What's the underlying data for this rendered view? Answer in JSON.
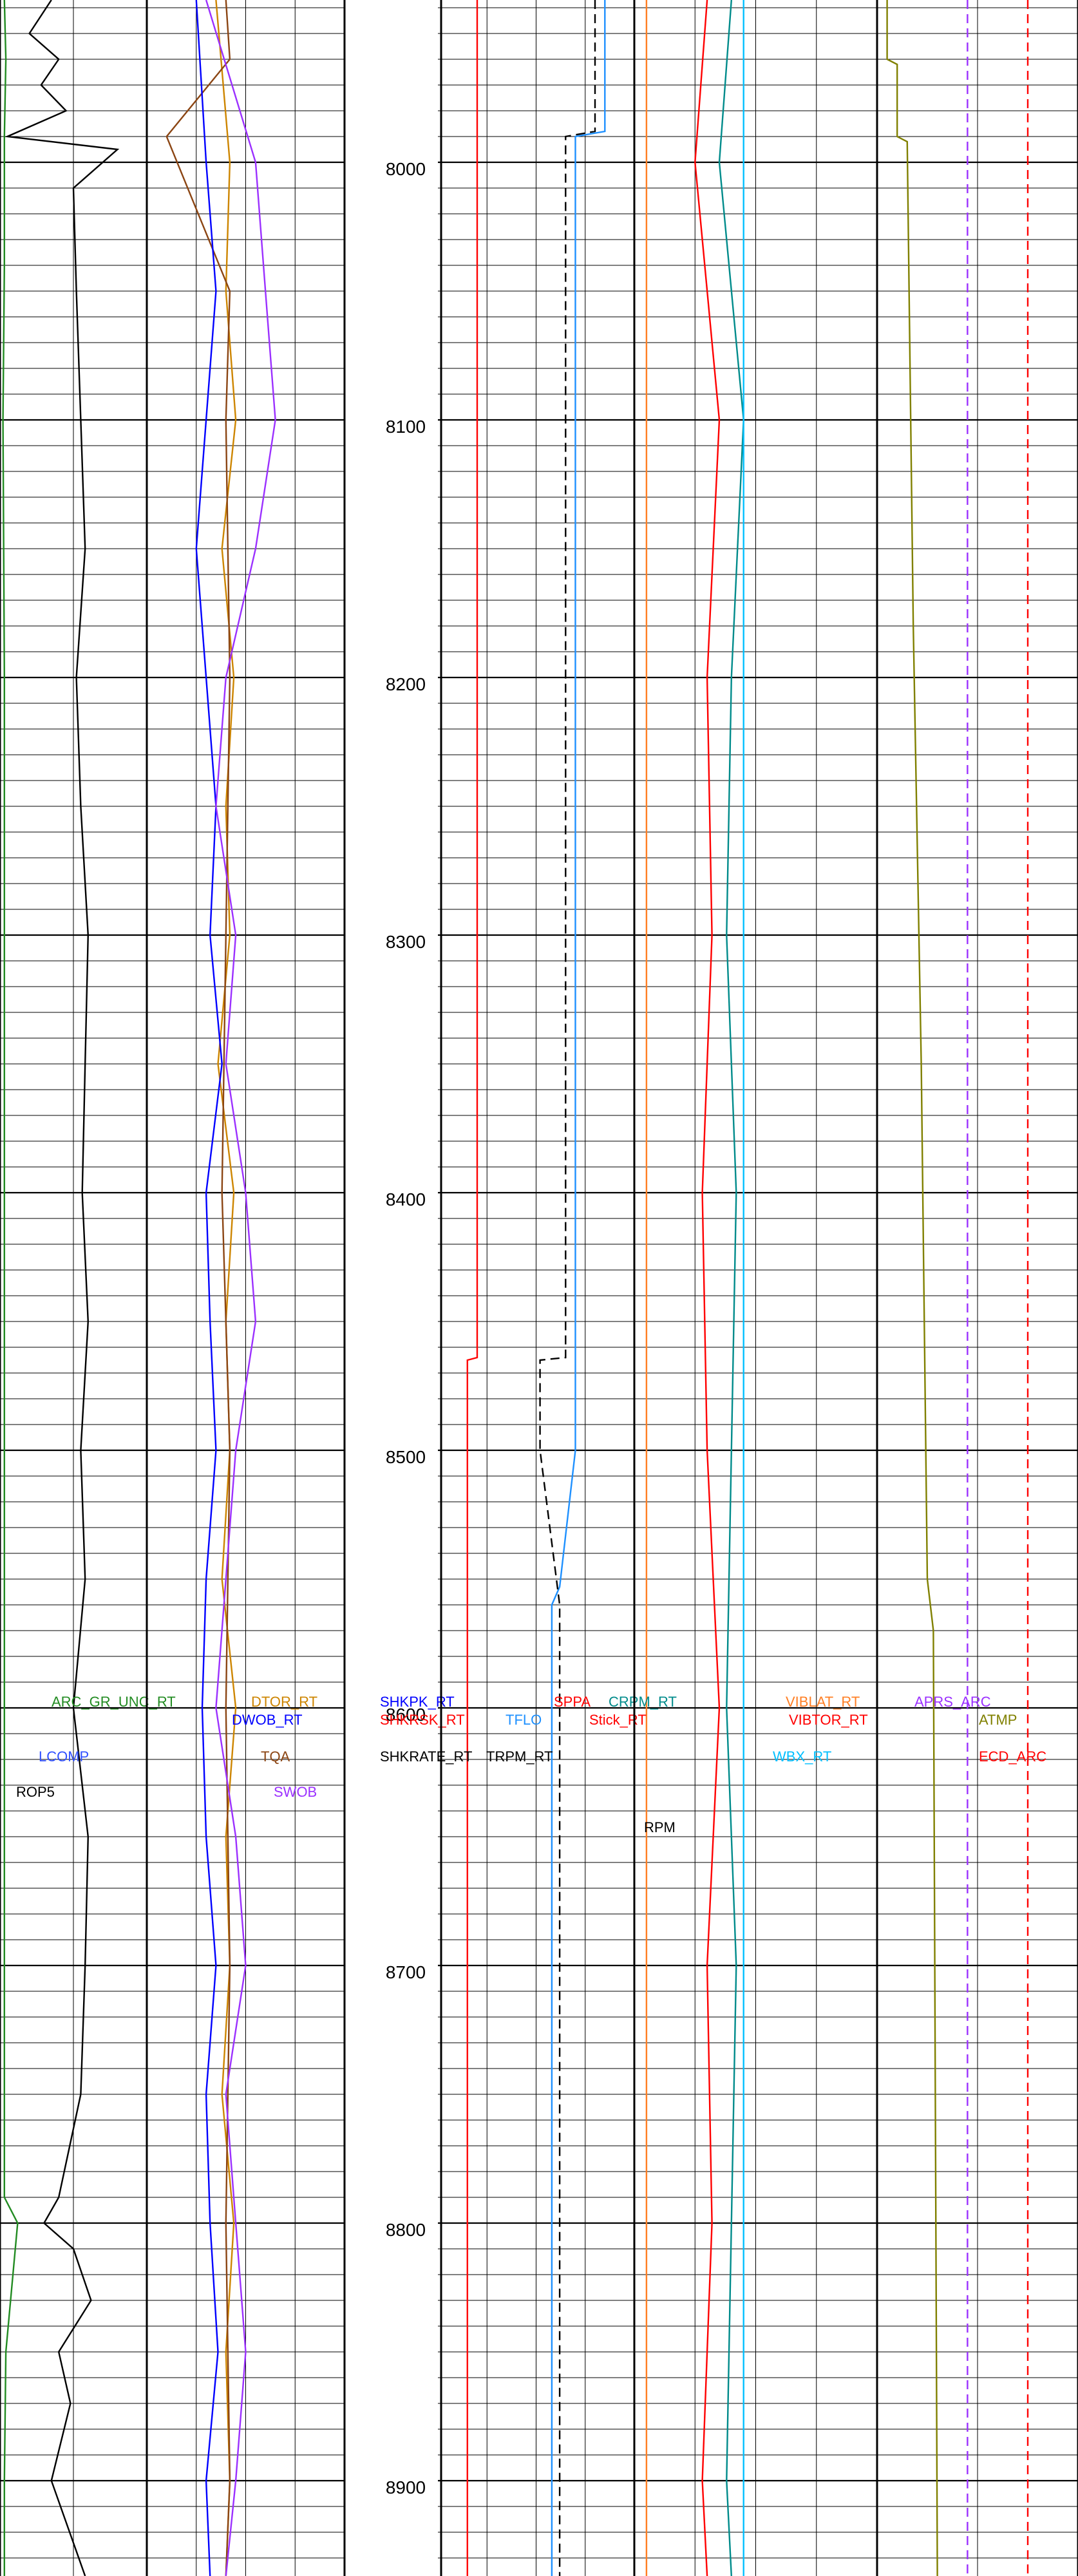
{
  "chart_data": {
    "type": "line",
    "title": "",
    "y_axis": {
      "label": "",
      "unit": "",
      "range": [
        7937,
        8937
      ],
      "inverted": true,
      "ticks": [
        8000,
        8100,
        8200,
        8300,
        8400,
        8500,
        8600,
        8700,
        8800,
        8900
      ],
      "tick_labels": [
        "8000",
        "8100",
        "8200",
        "8300",
        "8400",
        "8500",
        "8600",
        "8700",
        "8800",
        "8900"
      ],
      "minor_step": 10
    },
    "grid": true,
    "tracks": [
      {
        "name": "track-1",
        "vertical_gridlines": 1,
        "curves": [
          {
            "name": "ARC_GR_UNC_RT",
            "color": "#228b22",
            "style": "solid",
            "depth": [
              7937,
              7960,
              7990,
              8040,
              8100,
              8200,
              8300,
              8400,
              8500,
              8600,
              8700,
              8790,
              8800,
              8850,
              8900,
              8937
            ],
            "value": [
              0.03,
              0.04,
              0.03,
              0.03,
              0.02,
              0.03,
              0.03,
              0.03,
              0.03,
              0.03,
              0.03,
              0.03,
              0.12,
              0.04,
              0.03,
              0.03
            ]
          },
          {
            "name": "ROP5",
            "color": "#000000",
            "style": "solid",
            "depth": [
              7937,
              7950,
              7960,
              7970,
              7980,
              7990,
              7995,
              8010,
              8050,
              8100,
              8150,
              8200,
              8250,
              8300,
              8350,
              8400,
              8450,
              8500,
              8550,
              8600,
              8650,
              8700,
              8750,
              8790,
              8800,
              8810,
              8830,
              8850,
              8870,
              8900,
              8937
            ],
            "value": [
              0.35,
              0.2,
              0.4,
              0.28,
              0.45,
              0.05,
              0.8,
              0.5,
              0.52,
              0.55,
              0.58,
              0.52,
              0.55,
              0.6,
              0.58,
              0.56,
              0.6,
              0.55,
              0.58,
              0.5,
              0.6,
              0.58,
              0.55,
              0.4,
              0.3,
              0.5,
              0.62,
              0.4,
              0.48,
              0.35,
              0.58
            ]
          },
          {
            "name": "LCOMP",
            "color": "#3050ff",
            "style": "solid",
            "depth": [
              7937,
              8937
            ],
            "value": [
              0.0,
              0.0
            ]
          }
        ]
      },
      {
        "name": "track-2",
        "vertical_gridlines": 3,
        "curves": [
          {
            "name": "DTOR_RT",
            "color": "#cd8500",
            "style": "solid",
            "depth": [
              7937,
              8000,
              8050,
              8100,
              8150,
              8200,
              8250,
              8300,
              8350,
              8400,
              8450,
              8500,
              8550,
              8600,
              8650,
              8700,
              8750,
              8800,
              8850,
              8900,
              8937
            ],
            "value": [
              0.35,
              0.42,
              0.4,
              0.45,
              0.38,
              0.44,
              0.4,
              0.42,
              0.36,
              0.44,
              0.4,
              0.42,
              0.38,
              0.45,
              0.4,
              0.42,
              0.38,
              0.44,
              0.4,
              0.42,
              0.4
            ]
          },
          {
            "name": "TQA",
            "color": "#8b4513",
            "style": "solid",
            "depth": [
              7937,
              7960,
              7990,
              8050,
              8100,
              8200,
              8300,
              8400,
              8500,
              8600,
              8700,
              8800,
              8900,
              8937
            ],
            "value": [
              0.4,
              0.42,
              0.1,
              0.42,
              0.4,
              0.42,
              0.4,
              0.38,
              0.42,
              0.4,
              0.42,
              0.4,
              0.42,
              0.4
            ]
          },
          {
            "name": "DWOB_RT",
            "color": "#0000ff",
            "style": "solid",
            "depth": [
              7937,
              8000,
              8050,
              8100,
              8150,
              8200,
              8250,
              8300,
              8350,
              8400,
              8450,
              8500,
              8550,
              8600,
              8650,
              8700,
              8750,
              8800,
              8850,
              8900,
              8937
            ],
            "value": [
              0.25,
              0.3,
              0.35,
              0.3,
              0.25,
              0.3,
              0.35,
              0.32,
              0.38,
              0.3,
              0.32,
              0.35,
              0.3,
              0.28,
              0.3,
              0.35,
              0.3,
              0.32,
              0.36,
              0.3,
              0.32
            ]
          },
          {
            "name": "SWOB",
            "color": "#9b30ff",
            "style": "solid",
            "depth": [
              7937,
              8000,
              8050,
              8100,
              8150,
              8200,
              8250,
              8300,
              8350,
              8400,
              8450,
              8500,
              8550,
              8600,
              8650,
              8700,
              8750,
              8800,
              8850,
              8900,
              8937
            ],
            "value": [
              0.3,
              0.55,
              0.6,
              0.65,
              0.55,
              0.4,
              0.35,
              0.45,
              0.4,
              0.5,
              0.55,
              0.45,
              0.4,
              0.35,
              0.45,
              0.5,
              0.4,
              0.45,
              0.5,
              0.45,
              0.4
            ]
          }
        ]
      },
      {
        "name": "track-3",
        "vertical_gridlines": 0,
        "curves": [
          {
            "name": "SHKPK_RT",
            "color": "#0000ff",
            "style": "solid",
            "depth": [
              7937,
              8937
            ],
            "value": [
              0.0,
              0.0
            ]
          },
          {
            "name": "SHKRSK_RT",
            "color": "#ff0000",
            "style": "solid",
            "depth": [
              7937,
              8937
            ],
            "value": [
              0.0,
              0.0
            ]
          },
          {
            "name": "SHKRATE_RT",
            "color": "#000000",
            "style": "solid",
            "depth": [
              7937,
              8937
            ],
            "value": [
              0.0,
              0.0
            ]
          }
        ]
      },
      {
        "name": "track-4",
        "vertical_gridlines": 3,
        "curves": [
          {
            "name": "SPPA",
            "color": "#ff0000",
            "style": "solid",
            "depth": [
              7937,
              8464,
              8465,
              8937
            ],
            "value": [
              0.2,
              0.2,
              0.15,
              0.15
            ]
          },
          {
            "name": "TFLO",
            "color": "#1e90ff",
            "style": "solid",
            "depth": [
              7937,
              7988,
              7990,
              8464,
              8500,
              8553,
              8560,
              8937
            ],
            "value": [
              0.85,
              0.85,
              0.7,
              0.7,
              0.7,
              0.62,
              0.58,
              0.58
            ]
          },
          {
            "name": "TRPM_RT",
            "color": "#000000",
            "style": "dashed",
            "depth": [
              7937,
              7988,
              7990,
              8464,
              8465,
              8500,
              8560,
              8937
            ],
            "value": [
              0.8,
              0.8,
              0.65,
              0.65,
              0.52,
              0.52,
              0.62,
              0.62
            ]
          }
        ]
      },
      {
        "name": "track-5",
        "vertical_gridlines": 3,
        "curves": [
          {
            "name": "CRPM_RT",
            "color": "#008b8b",
            "style": "solid",
            "depth": [
              7937,
              8000,
              8100,
              8200,
              8300,
              8400,
              8500,
              8600,
              8700,
              8800,
              8900,
              8937
            ],
            "value": [
              0.4,
              0.35,
              0.45,
              0.4,
              0.38,
              0.42,
              0.4,
              0.38,
              0.42,
              0.4,
              0.38,
              0.4
            ]
          },
          {
            "name": "Stick_RT",
            "color": "#ff0000",
            "style": "solid",
            "depth": [
              7937,
              8000,
              8100,
              8200,
              8300,
              8400,
              8500,
              8600,
              8700,
              8800,
              8900,
              8937
            ],
            "value": [
              0.3,
              0.25,
              0.35,
              0.3,
              0.32,
              0.28,
              0.3,
              0.35,
              0.3,
              0.32,
              0.28,
              0.3
            ]
          },
          {
            "name": "WBX_RT",
            "color": "#00bfff",
            "style": "solid",
            "depth": [
              7937,
              8937
            ],
            "value": [
              0.45,
              0.45
            ]
          },
          {
            "name": "VIBLAT_RT",
            "color": "#ff7f24",
            "style": "solid",
            "depth": [
              7937,
              8937
            ],
            "value": [
              0.05,
              0.05
            ]
          },
          {
            "name": "VIBTOR_RT",
            "color": "#ff0000",
            "style": "solid",
            "depth": [
              7937,
              8937
            ],
            "value": [
              0.0,
              0.0
            ]
          },
          {
            "name": "RPM",
            "color": "#000000",
            "style": "solid",
            "depth": [
              7937,
              8937
            ],
            "value": [
              0.0,
              0.0
            ]
          }
        ]
      },
      {
        "name": "track-6",
        "vertical_gridlines": 1,
        "curves": [
          {
            "name": "APRS_ARC",
            "color": "#9b30ff",
            "style": "dashed",
            "depth": [
              7937,
              8937
            ],
            "value": [
              0.45,
              0.45
            ]
          },
          {
            "name": "ATMP",
            "color": "#808000",
            "style": "solid",
            "depth": [
              7937,
              7960,
              7962,
              7990,
              7992,
              8180,
              8350,
              8550,
              8570,
              8937
            ],
            "value": [
              0.05,
              0.05,
              0.1,
              0.1,
              0.15,
              0.18,
              0.22,
              0.25,
              0.28,
              0.3
            ]
          },
          {
            "name": "ECD_ARC",
            "color": "#ff0000",
            "style": "dashed",
            "depth": [
              7937,
              8937
            ],
            "value": [
              0.75,
              0.75
            ]
          }
        ]
      }
    ]
  }
}
